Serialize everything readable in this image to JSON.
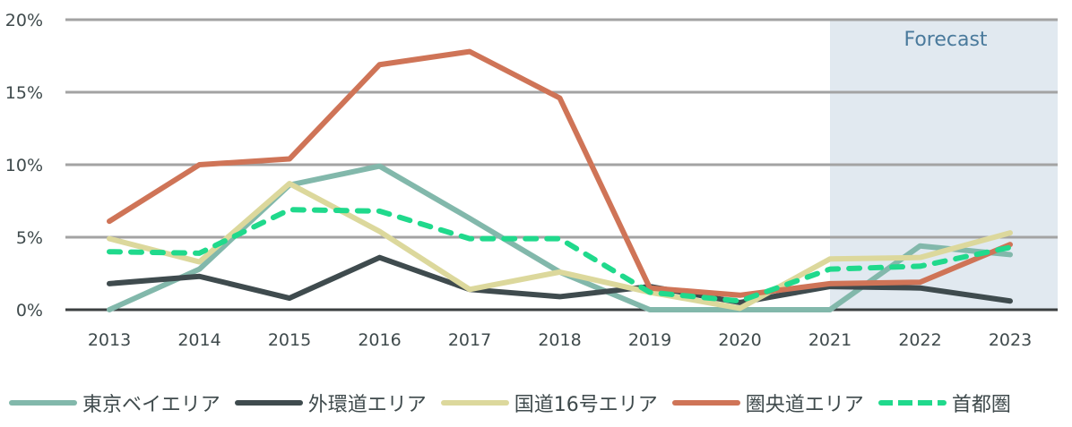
{
  "chart_data": {
    "type": "line",
    "title": "",
    "xlabel": "",
    "ylabel": "",
    "x": [
      "2013",
      "2014",
      "2015",
      "2016",
      "2017",
      "2018",
      "2019",
      "2020",
      "2021",
      "2022",
      "2023"
    ],
    "ylim": [
      0,
      20
    ],
    "yticks": [
      0,
      5,
      10,
      15,
      20
    ],
    "ytick_labels": [
      "0%",
      "5%",
      "10%",
      "15%",
      "20%"
    ],
    "grid": true,
    "legend_position": "bottom",
    "annotation": {
      "label": "Forecast",
      "x_start": "2021",
      "x_end": "2023",
      "color": "#e1e9f0"
    },
    "series": [
      {
        "name": "東京ベイエリア",
        "color": "#82b8ab",
        "dash": false,
        "values": [
          0.0,
          2.8,
          8.6,
          9.9,
          6.3,
          2.6,
          0.0,
          0.0,
          0.0,
          4.4,
          3.8
        ]
      },
      {
        "name": "外環道エリア",
        "color": "#3f4b4e",
        "dash": false,
        "values": [
          1.8,
          2.3,
          0.8,
          3.6,
          1.4,
          0.9,
          1.6,
          0.5,
          1.6,
          1.5,
          0.6
        ]
      },
      {
        "name": "国道16号エリア",
        "color": "#dcd89c",
        "dash": false,
        "values": [
          4.9,
          3.3,
          8.7,
          5.4,
          1.4,
          2.6,
          1.2,
          0.1,
          3.5,
          3.6,
          5.3
        ]
      },
      {
        "name": "圏央道エリア",
        "color": "#cf7457",
        "dash": false,
        "values": [
          6.1,
          10.0,
          10.4,
          16.9,
          17.8,
          14.6,
          1.5,
          1.0,
          1.8,
          1.9,
          4.5
        ]
      },
      {
        "name": "首都圏",
        "color": "#20d98c",
        "dash": true,
        "values": [
          4.0,
          3.9,
          6.9,
          6.8,
          4.9,
          4.9,
          1.2,
          0.6,
          2.8,
          3.0,
          4.3
        ]
      }
    ]
  }
}
